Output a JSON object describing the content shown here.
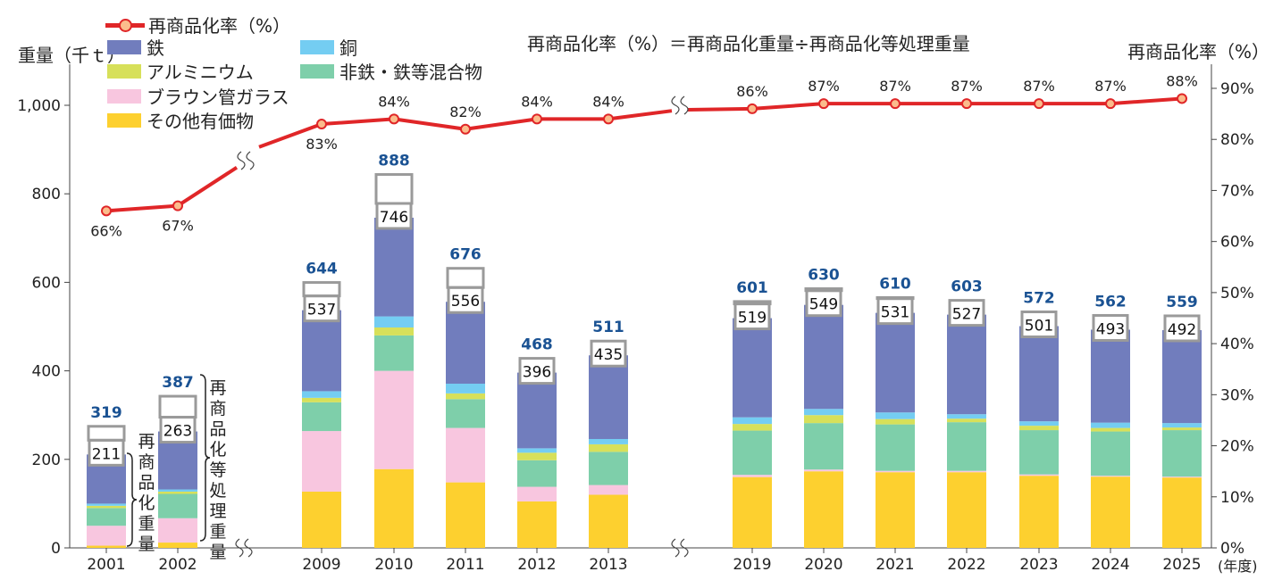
{
  "chart_data": {
    "type": "bar",
    "formula": "再商品化率（%）＝再商品化重量÷再商品化等処理重量",
    "left_axis": {
      "label": "重量（千ｔ）",
      "ticks": [
        "0",
        "200",
        "400",
        "600",
        "800",
        "1,000"
      ],
      "range": [
        0,
        1100
      ]
    },
    "right_axis": {
      "label": "再商品化率（%）",
      "ticks": [
        "0%",
        "10%",
        "20%",
        "30%",
        "40%",
        "50%",
        "60%",
        "70%",
        "80%",
        "90%"
      ],
      "range": [
        0,
        90
      ]
    },
    "x_unit": "(年度)",
    "categories": [
      "2001",
      "2002",
      "2009",
      "2010",
      "2011",
      "2012",
      "2013",
      "2019",
      "2020",
      "2021",
      "2022",
      "2023",
      "2024",
      "2025"
    ],
    "stacked_series": [
      {
        "name": "その他有価物",
        "color": "#fdd02f",
        "values": [
          5,
          12,
          127,
          178,
          148,
          105,
          120,
          160,
          173,
          171,
          171,
          163,
          161,
          159
        ]
      },
      {
        "name": "ブラウン管ガラス",
        "color": "#f8c6df",
        "values": [
          45,
          55,
          137,
          222,
          123,
          33,
          22,
          5,
          4,
          3,
          3,
          3,
          2,
          2
        ]
      },
      {
        "name": "非鉄・鉄等混合物",
        "color": "#7ecfaa",
        "values": [
          40,
          55,
          65,
          80,
          65,
          60,
          75,
          100,
          105,
          105,
          110,
          100,
          100,
          105
        ]
      },
      {
        "name": "アルミニウム",
        "color": "#d7e05a",
        "values": [
          5,
          5,
          10,
          18,
          13,
          17,
          17,
          15,
          18,
          12,
          8,
          10,
          8,
          6
        ]
      },
      {
        "name": "銅",
        "color": "#74cdf2",
        "values": [
          5,
          5,
          15,
          25,
          22,
          10,
          12,
          15,
          14,
          15,
          10,
          10,
          12,
          10
        ]
      },
      {
        "name": "鉄",
        "color": "#717dbd",
        "values": [
          111,
          131,
          183,
          223,
          185,
          171,
          189,
          224,
          235,
          225,
          225,
          215,
          210,
          210
        ]
      }
    ],
    "bar_totals": [
      "211",
      "263",
      "537",
      "746",
      "556",
      "396",
      "435",
      "519",
      "549",
      "531",
      "527",
      "501",
      "493",
      "492"
    ],
    "processed_totals": [
      319,
      387,
      644,
      888,
      676,
      468,
      511,
      601,
      630,
      610,
      603,
      572,
      562,
      559
    ],
    "processed_labels": [
      "319",
      "387",
      "644",
      "888",
      "676",
      "468",
      "511",
      "601",
      "630",
      "610",
      "603",
      "572",
      "562",
      "559"
    ],
    "rate_series": {
      "name": "再商品化率（%）",
      "color": "#e02628",
      "values": [
        66,
        67,
        83,
        84,
        82,
        84,
        84,
        86,
        87,
        87,
        87,
        87,
        87,
        88
      ],
      "labels": [
        "66%",
        "67%",
        "83%",
        "84%",
        "82%",
        "84%",
        "84%",
        "86%",
        "87%",
        "87%",
        "87%",
        "87%",
        "87%",
        "88%"
      ]
    },
    "bracket_labels": {
      "recycled": "再商品化重量",
      "processed": "再商品化等処理重量"
    }
  },
  "colors": {
    "rate_line": "#e02628",
    "marker_fill": "#fbbc8c",
    "total_label": "#1a5293",
    "box_border": "#9a9a9a"
  }
}
